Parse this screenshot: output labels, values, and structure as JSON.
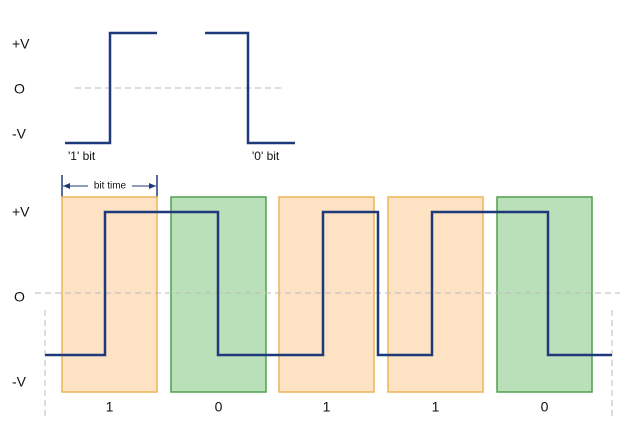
{
  "top": {
    "levels": [
      "+V",
      "O",
      "-V"
    ],
    "bit_labels": [
      "'1' bit",
      "'0' bit"
    ]
  },
  "bit_time_label": "bit time",
  "bottom": {
    "levels": [
      "+V",
      "O",
      "-V"
    ],
    "bits": [
      "1",
      "0",
      "1",
      "1",
      "0"
    ]
  }
}
